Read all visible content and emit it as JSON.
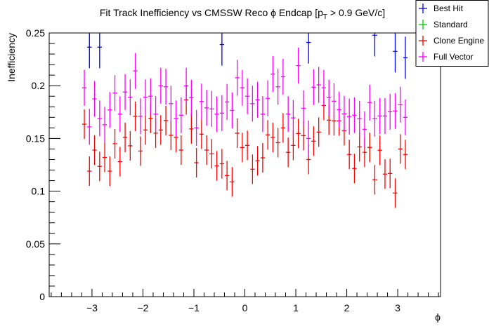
{
  "chart_data": {
    "type": "scatter",
    "title": "Fit Track Inefficiency vs CMSSW Reco ϕ Endcap [p",
    "title_sub": "T",
    "title_end": " > 0.9 GeV/c]",
    "xlabel": "ϕ",
    "ylabel": "Inefficiency",
    "xlim": [
      -3.84,
      3.84
    ],
    "ylim": [
      0,
      0.25
    ],
    "grid": false,
    "legend_position": "top-right",
    "x_ticks": [
      "−3",
      "−2",
      "−1",
      "0",
      "1",
      "2",
      "3"
    ],
    "x_tick_values": [
      -3,
      -2,
      -1,
      0,
      1,
      2,
      3
    ],
    "y_ticks": [
      "0",
      "0.05",
      "0.1",
      "0.15",
      "0.2",
      "0.25"
    ],
    "y_tick_values": [
      0,
      0.05,
      0.1,
      0.15,
      0.2,
      0.25
    ],
    "bin_width": 0.1,
    "series": [
      {
        "name": "Best Hit",
        "color": "#0000ff",
        "err": 0.02,
        "x": [
          -3.05,
          -2.85,
          -0.45,
          1.25,
          2.55,
          2.95,
          3.15
        ],
        "y": [
          0.2365,
          0.2365,
          0.239,
          0.241,
          0.2478,
          0.2325,
          0.2265
        ]
      },
      {
        "name": "Standard",
        "color": "#00cc00",
        "err": 0.013,
        "x": [
          2.45
        ],
        "y": [
          0.1414
        ]
      },
      {
        "name": "Clone Engine",
        "color": "#ff0000",
        "err": 0.014,
        "x": [
          -3.15,
          -3.05,
          -2.95,
          -2.85,
          -2.75,
          -2.65,
          -2.55,
          -2.45,
          -2.35,
          -2.25,
          -2.15,
          -2.05,
          -1.95,
          -1.85,
          -1.75,
          -1.65,
          -1.55,
          -1.45,
          -1.35,
          -1.25,
          -1.15,
          -1.05,
          -0.95,
          -0.85,
          -0.75,
          -0.65,
          -0.55,
          -0.45,
          -0.35,
          -0.25,
          -0.15,
          -0.05,
          0.05,
          0.15,
          0.25,
          0.35,
          0.45,
          0.55,
          0.65,
          0.75,
          0.85,
          0.95,
          1.05,
          1.15,
          1.25,
          1.35,
          1.45,
          1.55,
          1.65,
          1.75,
          1.85,
          1.95,
          2.05,
          2.15,
          2.25,
          2.35,
          2.45,
          2.55,
          2.65,
          2.75,
          2.85,
          2.95,
          3.05,
          3.15
        ],
        "y": [
          0.1635,
          0.119,
          0.139,
          0.1235,
          0.132,
          0.119,
          0.145,
          0.128,
          0.151,
          0.143,
          0.171,
          0.138,
          0.158,
          0.169,
          0.155,
          0.158,
          0.167,
          0.153,
          0.151,
          0.139,
          0.1866,
          0.159,
          0.127,
          0.154,
          0.139,
          0.1354,
          0.124,
          0.126,
          0.1148,
          0.1088,
          0.155,
          0.1414,
          0.1434,
          0.1208,
          0.1288,
          0.1316,
          0.1534,
          0.151,
          0.146,
          0.16,
          0.1368,
          0.1434,
          0.1547,
          0.1527,
          0.13,
          0.1474,
          0.156,
          0.1813,
          0.1673,
          0.1667,
          0.1667,
          0.1574,
          0.1348,
          0.1215,
          0.142,
          0.1368,
          0.1414,
          0.1108,
          0.1388,
          0.1162,
          0.1168,
          0.0982,
          0.14,
          0.1348
        ]
      },
      {
        "name": "Full Vector",
        "color": "#ff00ff",
        "err": 0.017,
        "x": [
          -3.15,
          -3.05,
          -2.95,
          -2.85,
          -2.75,
          -2.65,
          -2.55,
          -2.45,
          -2.35,
          -2.25,
          -2.15,
          -2.05,
          -1.95,
          -1.85,
          -1.75,
          -1.65,
          -1.55,
          -1.45,
          -1.35,
          -1.25,
          -1.15,
          -1.05,
          -0.95,
          -0.85,
          -0.75,
          -0.65,
          -0.55,
          -0.45,
          -0.35,
          -0.25,
          -0.15,
          -0.05,
          0.05,
          0.15,
          0.25,
          0.35,
          0.45,
          0.55,
          0.65,
          0.75,
          0.85,
          0.95,
          1.05,
          1.15,
          1.25,
          1.35,
          1.45,
          1.55,
          1.65,
          1.75,
          1.85,
          1.95,
          2.05,
          2.15,
          2.25,
          2.35,
          2.45,
          2.55,
          2.65,
          2.75,
          2.85,
          2.95,
          3.05,
          3.15
        ],
        "y": [
          0.198,
          0.161,
          0.1875,
          0.169,
          0.163,
          0.177,
          0.193,
          0.173,
          0.194,
          0.189,
          0.214,
          0.171,
          0.189,
          0.19,
          0.173,
          0.2,
          0.199,
          0.183,
          0.169,
          0.172,
          0.2,
          0.1886,
          0.16,
          0.185,
          0.179,
          0.178,
          0.173,
          0.174,
          0.1846,
          0.1766,
          0.2075,
          0.198,
          0.19,
          0.183,
          0.1866,
          0.173,
          0.188,
          0.211,
          0.199,
          0.2085,
          0.173,
          0.1695,
          0.219,
          0.1786,
          0.15,
          0.1986,
          0.2008,
          0.198,
          0.1886,
          0.1853,
          0.1773,
          0.1733,
          0.1707,
          0.172,
          0.1687,
          0.1587,
          0.184,
          0.1687,
          0.1713,
          0.1713,
          0.1753,
          0.176,
          0.182,
          0.17
        ]
      }
    ]
  }
}
